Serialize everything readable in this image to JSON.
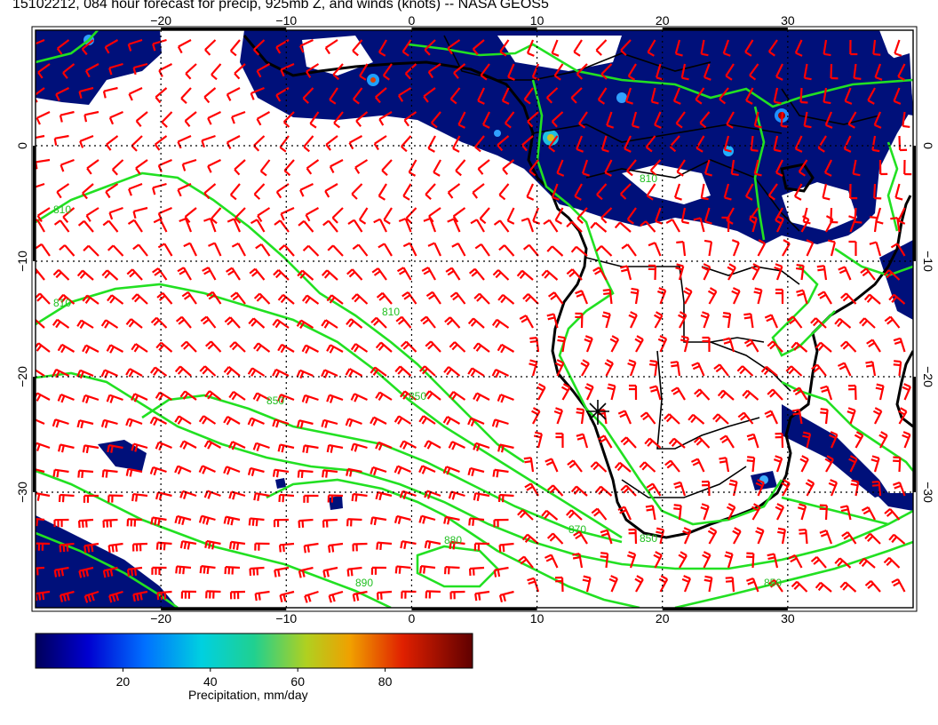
{
  "title": "15102212, 084 hour forecast for precip, 925mb Z, and winds (knots) -- NASA GEOS5",
  "map": {
    "lon_range": [
      -30,
      40
    ],
    "lat_range": [
      -40,
      10
    ],
    "lon_ticks": [
      {
        "value": -20,
        "label": "−20"
      },
      {
        "value": -10,
        "label": "−10"
      },
      {
        "value": 0,
        "label": "0"
      },
      {
        "value": 10,
        "label": "10"
      },
      {
        "value": 20,
        "label": "20"
      },
      {
        "value": 30,
        "label": "30"
      }
    ],
    "lat_ticks": [
      {
        "value": 0,
        "label": "0"
      },
      {
        "value": -10,
        "label": "−10"
      },
      {
        "value": -20,
        "label": "−20"
      },
      {
        "value": -30,
        "label": "−30"
      }
    ],
    "gridlines": true,
    "contour_labels": [
      "810",
      "810",
      "810",
      "850",
      "850",
      "850",
      "850",
      "870",
      "880",
      "890",
      "810"
    ],
    "colors": {
      "precip_low": "#00107a",
      "contour": "#22e022",
      "wind_barb": "#ff0000",
      "coastline": "#000000"
    }
  },
  "colorbar": {
    "label": "Precipitation, mm/day",
    "range": [
      0,
      100
    ],
    "ticks": [
      "20",
      "40",
      "60",
      "80"
    ],
    "tick_values": [
      20,
      40,
      60,
      80
    ]
  }
}
